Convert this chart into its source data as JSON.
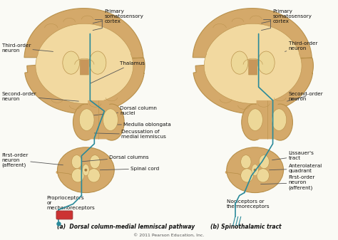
{
  "background_color": "#FAFAF5",
  "brain_color": "#D4A96A",
  "brain_outline": "#B8904A",
  "inner_color": "#EDD898",
  "white_matter": "#F2D9A0",
  "pathway_color": "#2A8A9A",
  "pathway_lw": 1.2,
  "label_fontsize": 5.2,
  "subtitle_fontsize": 5.5,
  "caption_a": "(a)  Dorsal column-medial lemniscal pathway",
  "caption_b": "(b) Spinothalamic tract",
  "copyright": "© 2011 Pearson Education, Inc."
}
